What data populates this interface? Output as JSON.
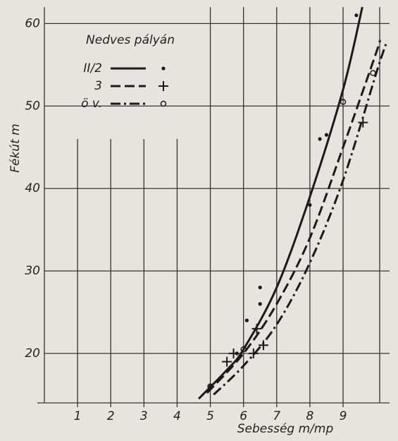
{
  "chart_data": {
    "type": "line",
    "legend_title": "Nedves pályán",
    "xlabel": "Sebesség m/mp",
    "ylabel": "Fékút m",
    "xlim": [
      0,
      10.4
    ],
    "ylim": [
      14,
      62
    ],
    "xticks": [
      1,
      2,
      3,
      4,
      5,
      6,
      7,
      8,
      9
    ],
    "yticks": [
      20,
      30,
      40,
      50,
      60
    ],
    "grid": true,
    "series": [
      {
        "name": "II/2",
        "color": "#1a1a1a",
        "dash": "solid",
        "marker": "dot",
        "x": [
          4.65,
          5.5,
          6,
          7,
          8,
          9,
          9.58
        ],
        "values": [
          14.5,
          18,
          20.5,
          28,
          39,
          52,
          62
        ],
        "points": {
          "x": [
            5,
            5.8,
            6.1,
            6.5,
            6.5,
            8,
            8.3,
            8.5,
            9.4
          ],
          "y": [
            16,
            20,
            24,
            26,
            28,
            38,
            46,
            46.5,
            61
          ]
        }
      },
      {
        "name": "3",
        "color": "#1a1a1a",
        "dash": "dashed",
        "marker": "plus",
        "x": [
          4.9,
          6,
          7,
          8,
          9,
          10,
          10.1
        ],
        "values": [
          15.2,
          20,
          26,
          34,
          45,
          56.5,
          57.9
        ],
        "points": {
          "x": [
            5.5,
            5.7,
            6.3,
            6.4,
            6.6,
            9.6
          ],
          "y": [
            19,
            20,
            20,
            23,
            21,
            48
          ]
        }
      },
      {
        "name": "ö v.",
        "color": "#1a1a1a",
        "dash": "dashdot",
        "marker": "circle",
        "x": [
          5.1,
          6,
          7,
          8,
          9,
          10,
          10.3
        ],
        "values": [
          15,
          18.5,
          23.5,
          31,
          41,
          54,
          57.6
        ],
        "points": {
          "x": [
            5,
            6,
            9,
            9.9
          ],
          "y": [
            16,
            20.5,
            50.5,
            54
          ]
        }
      }
    ]
  }
}
